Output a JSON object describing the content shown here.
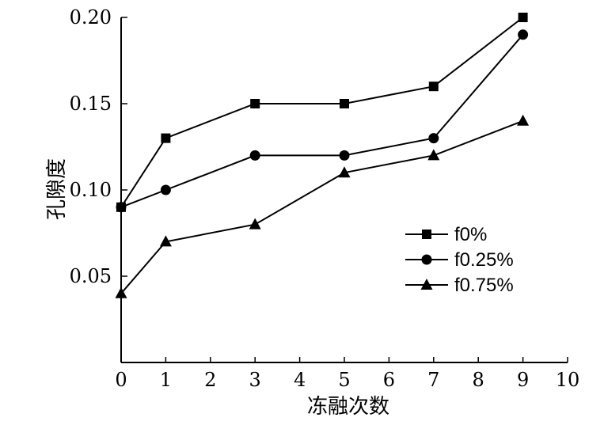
{
  "chart_data": {
    "type": "line",
    "xlabel": "冻融次数",
    "ylabel": "孔隙度",
    "xlim": [
      0,
      10
    ],
    "ylim": [
      0,
      0.2
    ],
    "x_ticks": [
      "0",
      "1",
      "2",
      "3",
      "4",
      "5",
      "6",
      "7",
      "8",
      "9",
      "10"
    ],
    "y_ticks": [
      "0.05",
      "0.10",
      "0.15",
      "0.20"
    ],
    "grid": false,
    "legend_position": "right",
    "series": [
      {
        "name": "f0%",
        "marker": "square",
        "x": [
          0,
          1,
          3,
          5,
          7,
          9
        ],
        "values": [
          0.09,
          0.13,
          0.15,
          0.15,
          0.16,
          0.2
        ]
      },
      {
        "name": "f0.25%",
        "marker": "circle",
        "x": [
          0,
          1,
          3,
          5,
          7,
          9
        ],
        "values": [
          0.09,
          0.1,
          0.12,
          0.12,
          0.13,
          0.19
        ]
      },
      {
        "name": "f0.75%",
        "marker": "triangle",
        "x": [
          0,
          1,
          3,
          5,
          7,
          9
        ],
        "values": [
          0.04,
          0.07,
          0.08,
          0.11,
          0.12,
          0.14
        ]
      }
    ]
  }
}
